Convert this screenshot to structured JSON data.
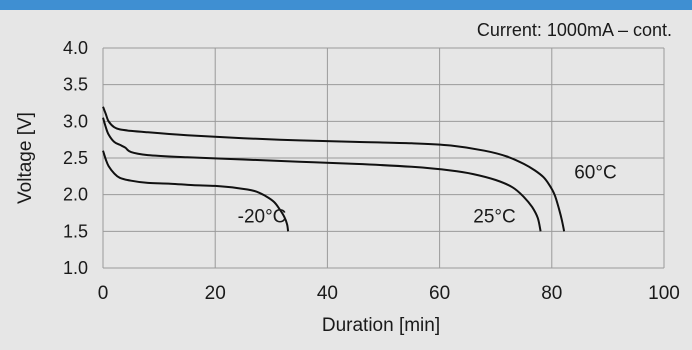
{
  "colors": {
    "accent_bar": "#3f8fd2",
    "background": "#e6e6e6",
    "grid": "#9a9a9a",
    "curve": "#111111"
  },
  "chart_data": {
    "type": "line",
    "title": "",
    "annotation": "Current: 1000mA – cont.",
    "xlabel": "Duration [min]",
    "ylabel": "Voltage [V]",
    "xlim": [
      0,
      100
    ],
    "ylim": [
      1.0,
      4.0
    ],
    "xticks": [
      "0",
      "20",
      "40",
      "60",
      "80",
      "100"
    ],
    "yticks": [
      "1.0",
      "1.5",
      "2.0",
      "2.5",
      "3.0",
      "3.5",
      "4.0"
    ],
    "grid": true,
    "series": [
      {
        "name": "-20°C",
        "x": [
          0,
          0.5,
          1,
          2,
          3,
          5,
          8,
          12,
          16,
          20,
          24,
          27,
          29,
          30.5,
          31.5,
          32.3,
          32.8,
          33
        ],
        "y": [
          2.6,
          2.48,
          2.39,
          2.29,
          2.23,
          2.19,
          2.16,
          2.15,
          2.13,
          2.12,
          2.09,
          2.05,
          1.98,
          1.9,
          1.8,
          1.7,
          1.6,
          1.5
        ]
      },
      {
        "name": "25°C",
        "x": [
          0,
          0.5,
          1,
          2,
          3,
          4,
          5,
          8,
          15,
          25,
          35,
          45,
          55,
          62,
          66,
          70,
          73,
          75,
          76.5,
          77.5,
          78
        ],
        "y": [
          3.05,
          2.92,
          2.82,
          2.72,
          2.68,
          2.64,
          2.58,
          2.54,
          2.51,
          2.48,
          2.45,
          2.42,
          2.38,
          2.33,
          2.28,
          2.2,
          2.1,
          1.97,
          1.83,
          1.68,
          1.5
        ]
      },
      {
        "name": "60°C",
        "x": [
          0,
          0.5,
          1,
          2,
          3,
          5,
          8,
          15,
          25,
          35,
          45,
          55,
          62,
          68,
          72,
          75,
          77,
          78.5,
          79.5,
          80.5,
          81.3,
          81.8,
          82.2
        ],
        "y": [
          3.2,
          3.1,
          3.0,
          2.92,
          2.89,
          2.87,
          2.85,
          2.81,
          2.77,
          2.74,
          2.72,
          2.7,
          2.67,
          2.6,
          2.52,
          2.42,
          2.33,
          2.24,
          2.14,
          2.0,
          1.8,
          1.65,
          1.5
        ]
      }
    ],
    "curve_labels": [
      {
        "text": "-20°C",
        "x": 24,
        "y": 1.62
      },
      {
        "text": "25°C",
        "x": 66,
        "y": 1.62
      },
      {
        "text": "60°C",
        "x": 84,
        "y": 2.22
      }
    ]
  }
}
